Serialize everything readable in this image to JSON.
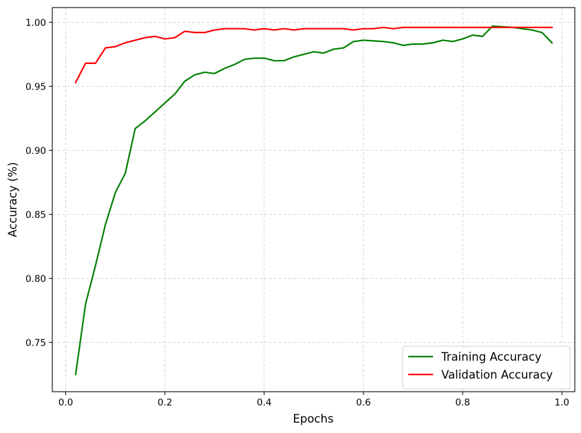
{
  "chart_data": {
    "type": "line",
    "title": "",
    "xlabel": "Epochs",
    "ylabel": "Accuracy (%)",
    "xlim": [
      -0.027,
      1.026
    ],
    "ylim": [
      0.7115,
      1.0115
    ],
    "xticks": [
      0.0,
      0.2,
      0.4,
      0.6,
      0.8,
      1.0
    ],
    "xtick_labels": [
      "0.0",
      "0.2",
      "0.4",
      "0.6",
      "0.8",
      "1.0"
    ],
    "yticks": [
      0.75,
      0.8,
      0.85,
      0.9,
      0.95,
      1.0
    ],
    "ytick_labels": [
      "0.75",
      "0.80",
      "0.85",
      "0.90",
      "0.95",
      "1.00"
    ],
    "grid": true,
    "legend_position": "bottom-right",
    "x": [
      0.02,
      0.04,
      0.06,
      0.08,
      0.1,
      0.12,
      0.14,
      0.16,
      0.18,
      0.2,
      0.22,
      0.24,
      0.26,
      0.28,
      0.3,
      0.32,
      0.34,
      0.36,
      0.38,
      0.4,
      0.42,
      0.44,
      0.46,
      0.48,
      0.5,
      0.52,
      0.54,
      0.56,
      0.58,
      0.6,
      0.62,
      0.64,
      0.66,
      0.68,
      0.7,
      0.72,
      0.74,
      0.76,
      0.78,
      0.8,
      0.82,
      0.84,
      0.86,
      0.88,
      0.9,
      0.92,
      0.94,
      0.96,
      0.98
    ],
    "series": [
      {
        "name": "Training Accuracy",
        "color": "#008000",
        "values": [
          0.725,
          0.78,
          0.81,
          0.842,
          0.867,
          0.882,
          0.917,
          0.923,
          0.93,
          0.937,
          0.944,
          0.954,
          0.959,
          0.961,
          0.96,
          0.964,
          0.967,
          0.971,
          0.972,
          0.972,
          0.97,
          0.97,
          0.973,
          0.975,
          0.977,
          0.976,
          0.979,
          0.98,
          0.985,
          0.986,
          0.9855,
          0.985,
          0.984,
          0.982,
          0.983,
          0.983,
          0.984,
          0.986,
          0.985,
          0.987,
          0.99,
          0.989,
          0.997,
          0.9965,
          0.996,
          0.995,
          0.994,
          0.992,
          0.984
        ]
      },
      {
        "name": "Validation Accuracy",
        "color": "#ff0000",
        "values": [
          0.953,
          0.968,
          0.968,
          0.98,
          0.981,
          0.984,
          0.986,
          0.988,
          0.989,
          0.987,
          0.988,
          0.993,
          0.992,
          0.992,
          0.994,
          0.995,
          0.995,
          0.995,
          0.994,
          0.995,
          0.994,
          0.995,
          0.994,
          0.995,
          0.995,
          0.995,
          0.995,
          0.995,
          0.994,
          0.995,
          0.995,
          0.996,
          0.995,
          0.996,
          0.996,
          0.996,
          0.996,
          0.996,
          0.996,
          0.996,
          0.996,
          0.996,
          0.996,
          0.996,
          0.996,
          0.996,
          0.996,
          0.996,
          0.996
        ]
      }
    ]
  }
}
